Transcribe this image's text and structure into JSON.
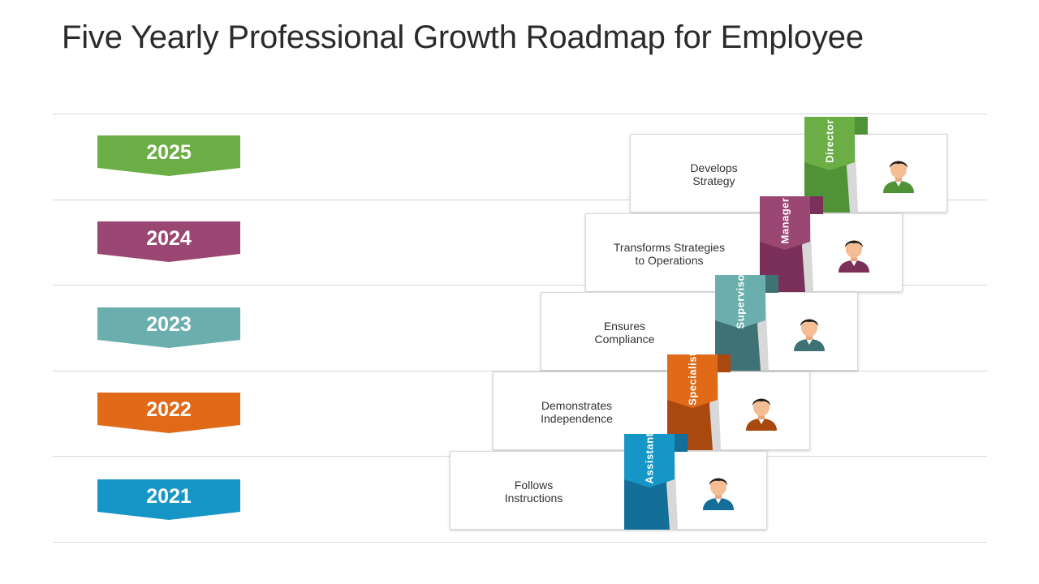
{
  "title": "Five Yearly Professional Growth Roadmap for Employee",
  "levels": [
    {
      "year": "2025",
      "role": "Director",
      "description": "Develops\nStrategy",
      "color": "#6aae45",
      "dark": "#4f9336"
    },
    {
      "year": "2024",
      "role": "Manager",
      "description": "Transforms Strategies\nto Operations",
      "color": "#9b4774",
      "dark": "#7a3059"
    },
    {
      "year": "2023",
      "role": "Supervisor",
      "description": "Ensures\nCompliance",
      "color": "#6aafad",
      "dark": "#3e7274"
    },
    {
      "year": "2022",
      "role": "Specialist",
      "description": "Demonstrates\nIndependence",
      "color": "#e06a18",
      "dark": "#a9490f"
    },
    {
      "year": "2021",
      "role": "Assistant",
      "description": "Follows\nInstructions",
      "color": "#1596c6",
      "dark": "#136f98"
    }
  ],
  "icons": [
    "person-icon"
  ]
}
